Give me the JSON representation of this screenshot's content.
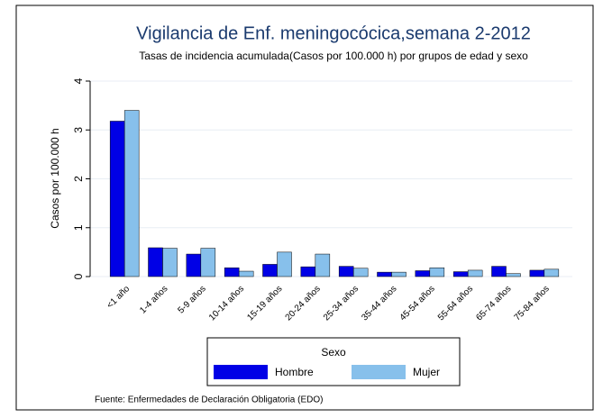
{
  "chart_data": {
    "type": "bar",
    "title": "Vigilancia de Enf. meningocócica,semana 2-2012",
    "subtitle": "Tasas de incidencia acumulada(Casos por 100.000 h) por grupos de edad y sexo",
    "ylabel": "Casos por 100.000 h",
    "legend_title": "Sexo",
    "legend_position": "bottom",
    "source": "Fuente: Enfermedades de Declaración Obligatoria (EDO)",
    "categories": [
      "<1 año",
      "1-4 años",
      "5-9 años",
      "10-14 años",
      "15-19 años",
      "20-24 años",
      "25-34 años",
      "35-44 años",
      "45-54 años",
      "55-64 años",
      "65-74 años",
      "75-84 años"
    ],
    "series": [
      {
        "name": "Hombre",
        "color": "#0000e6",
        "values": [
          3.18,
          0.59,
          0.46,
          0.18,
          0.25,
          0.2,
          0.21,
          0.09,
          0.12,
          0.1,
          0.21,
          0.13
        ]
      },
      {
        "name": "Mujer",
        "color": "#87c0eb",
        "values": [
          3.4,
          0.58,
          0.58,
          0.11,
          0.5,
          0.46,
          0.17,
          0.09,
          0.18,
          0.13,
          0.06,
          0.15
        ]
      }
    ],
    "ylim": [
      0,
      4
    ],
    "yticks": [
      0,
      1,
      2,
      3,
      4
    ],
    "grid": true
  }
}
